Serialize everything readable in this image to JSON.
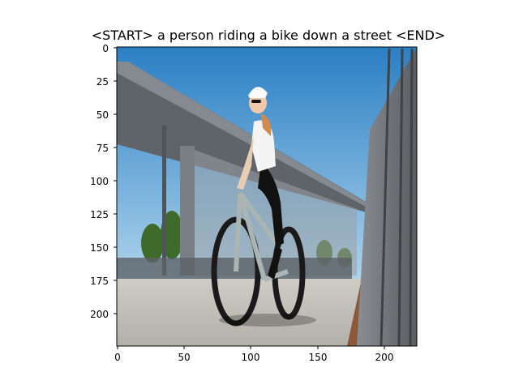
{
  "figure": {
    "title": "<START> a person riding a bike down a street <END>",
    "x_ticks": [
      "0",
      "50",
      "100",
      "150",
      "200"
    ],
    "y_ticks": [
      "0",
      "25",
      "50",
      "75",
      "100",
      "125",
      "150",
      "175",
      "200"
    ]
  },
  "image": {
    "subject": "woman in white helmet, sunglasses, white t-shirt and black leggings riding a mountain bike",
    "scene": "outdoor plaza under a large cantilevered concrete canopy, blue sky, grey railing on the right",
    "colors": {
      "sky_top": "#2a7fc4",
      "sky_bottom": "#cde3f2",
      "canopy": "#5e646a",
      "ground": "#bcb8b2",
      "railing": "#6d7175",
      "bike_frame": "#a9b4b3",
      "trees": "#3f6b2a"
    }
  }
}
